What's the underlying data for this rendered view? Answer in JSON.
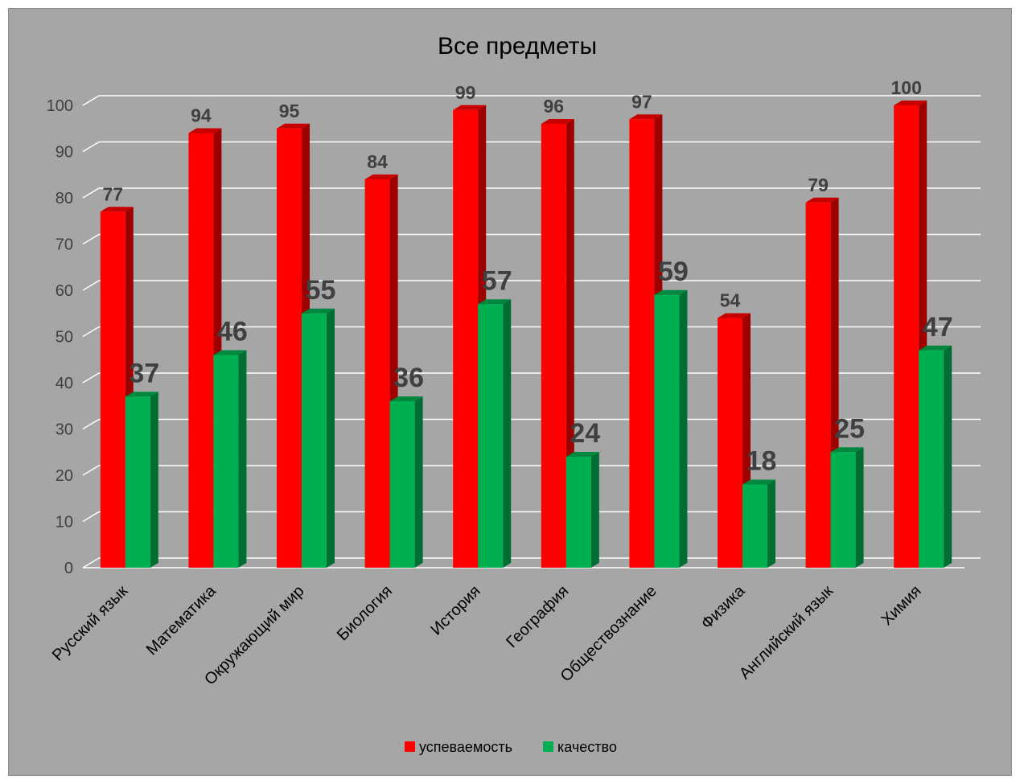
{
  "chart_data": {
    "type": "bar",
    "title": "Все предметы",
    "xlabel": "",
    "ylabel": "",
    "ylim": [
      0,
      100
    ],
    "yticks": [
      0,
      10,
      20,
      30,
      40,
      50,
      60,
      70,
      80,
      90,
      100
    ],
    "grid": true,
    "legend_position": "bottom",
    "categories": [
      "Русский язык",
      "Математика",
      "Окружающий мир",
      "Биология",
      "История",
      "География",
      "Обществознание",
      "Физика",
      "Английский язык",
      "Химия"
    ],
    "series": [
      {
        "name": "успеваемость",
        "color": "#ff0000",
        "values": [
          77,
          94,
          95,
          84,
          99,
          96,
          97,
          54,
          79,
          100
        ]
      },
      {
        "name": "качество",
        "color": "#00b050",
        "values": [
          37,
          46,
          55,
          36,
          57,
          24,
          59,
          18,
          25,
          47
        ]
      }
    ]
  }
}
